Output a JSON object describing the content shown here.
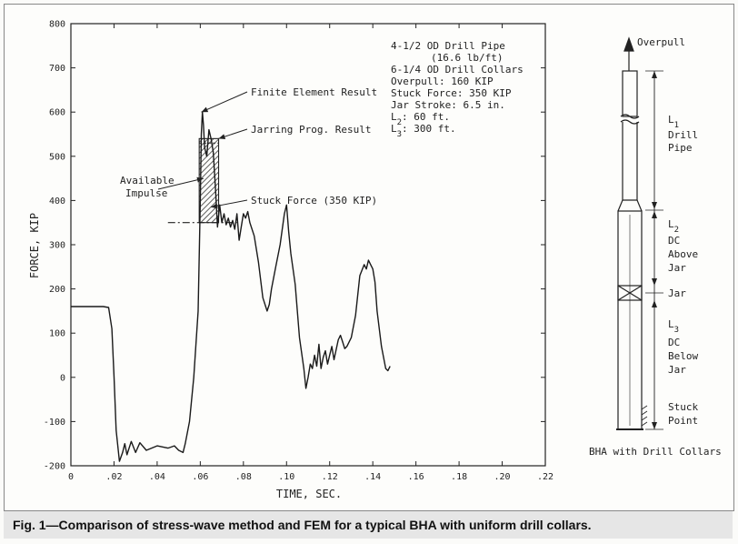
{
  "caption": "Fig. 1—Comparison of stress-wave method and FEM for a typical BHA with uniform drill collars.",
  "chart_data": {
    "type": "line",
    "xlabel": "TIME, SEC.",
    "ylabel": "FORCE, KIP",
    "xlim": [
      0,
      0.22
    ],
    "ylim": [
      -200,
      800
    ],
    "xticks": [
      0,
      0.02,
      0.04,
      0.06,
      0.08,
      0.1,
      0.12,
      0.14,
      0.16,
      0.18,
      0.2,
      0.22
    ],
    "xtick_labels": [
      "0",
      ".02",
      ".04",
      ".06",
      ".08",
      ".10",
      ".12",
      ".14",
      ".16",
      ".18",
      ".20",
      ".22"
    ],
    "yticks": [
      -200,
      -100,
      0,
      100,
      200,
      300,
      400,
      500,
      600,
      700,
      800
    ],
    "ytick_labels": [
      "-200",
      "-100",
      "0",
      "100",
      "200",
      "300",
      "400",
      "500",
      "600",
      "700",
      "800"
    ],
    "grid": false,
    "series": [
      {
        "name": "Finite Element Result",
        "x": [
          0,
          0.015,
          0.0175,
          0.019,
          0.02,
          0.021,
          0.0225,
          0.024,
          0.025,
          0.026,
          0.028,
          0.03,
          0.032,
          0.035,
          0.04,
          0.045,
          0.048,
          0.05,
          0.052,
          0.053,
          0.055,
          0.057,
          0.059,
          0.06,
          0.0605,
          0.061,
          0.0615,
          0.062,
          0.063,
          0.064,
          0.065,
          0.066,
          0.067,
          0.068,
          0.069,
          0.07,
          0.071,
          0.072,
          0.073,
          0.074,
          0.075,
          0.076,
          0.077,
          0.078,
          0.079,
          0.08,
          0.081,
          0.082,
          0.083,
          0.085,
          0.087,
          0.089,
          0.091,
          0.092,
          0.093,
          0.095,
          0.097,
          0.099,
          0.1,
          0.101,
          0.102,
          0.104,
          0.106,
          0.108,
          0.109,
          0.11,
          0.111,
          0.112,
          0.113,
          0.114,
          0.115,
          0.116,
          0.117,
          0.118,
          0.119,
          0.12,
          0.121,
          0.122,
          0.124,
          0.125,
          0.126,
          0.127,
          0.128,
          0.129,
          0.13,
          0.132,
          0.134,
          0.136,
          0.137,
          0.138,
          0.139,
          0.14,
          0.141,
          0.142,
          0.144,
          0.146,
          0.147,
          0.148
        ],
        "y": [
          160,
          160,
          158,
          110,
          0,
          -120,
          -190,
          -170,
          -150,
          -175,
          -145,
          -170,
          -148,
          -165,
          -155,
          -160,
          -155,
          -165,
          -170,
          -150,
          -100,
          0,
          150,
          400,
          550,
          600,
          570,
          520,
          500,
          560,
          540,
          510,
          430,
          340,
          390,
          350,
          370,
          345,
          360,
          340,
          355,
          335,
          370,
          310,
          340,
          370,
          360,
          375,
          350,
          320,
          260,
          180,
          150,
          165,
          200,
          250,
          300,
          370,
          390,
          330,
          280,
          210,
          90,
          20,
          -25,
          0,
          30,
          20,
          50,
          25,
          75,
          20,
          45,
          60,
          30,
          50,
          70,
          40,
          85,
          95,
          80,
          65,
          70,
          80,
          90,
          140,
          230,
          255,
          245,
          265,
          255,
          245,
          215,
          150,
          70,
          20,
          15,
          25
        ]
      }
    ],
    "annotations": [
      {
        "text": "Finite Element Result"
      },
      {
        "text": "Jarring Prog. Result"
      },
      {
        "text": "Available",
        "text2": "Impulse"
      },
      {
        "text": "Stuck Force (350 KIP)"
      }
    ],
    "stuck_force_level": 350,
    "info_lines": [
      "4-1/2 OD Drill Pipe",
      "(16.6 lb/ft)",
      "6-1/4 OD Drill Collars",
      "Overpull: 160 KIP",
      "Stuck Force: 350 KIP",
      "Jar Stroke: 6.5 in.",
      "L2:    60 ft.",
      "L3:   300 ft."
    ]
  },
  "bha": {
    "overpull": "Overpull",
    "l1": "L1",
    "l1_desc": [
      "Drill",
      "Pipe"
    ],
    "l2": "L2",
    "l2_desc": [
      "DC",
      "Above",
      "Jar"
    ],
    "jar": "Jar",
    "l3": "L3",
    "l3_desc": [
      "DC",
      "Below",
      "Jar"
    ],
    "stuck": [
      "Stuck",
      "Point"
    ],
    "title": "BHA with Drill Collars"
  }
}
